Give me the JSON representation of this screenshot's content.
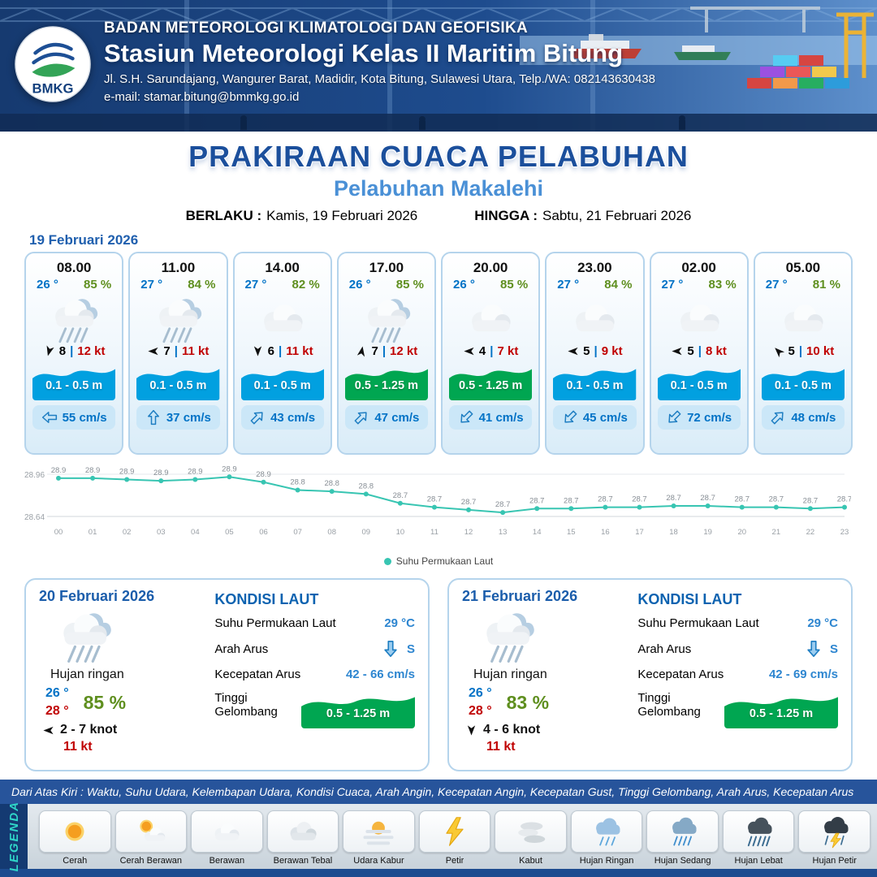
{
  "header": {
    "logo_label": "BMKG",
    "org": "BADAN METEOROLOGI KLIMATOLOGI DAN GEOFISIKA",
    "station": "Stasiun Meteorologi Kelas II Maritim Bitung",
    "address": "Jl. S.H. Sarundajang, Wangurer Barat, Madidir, Kota Bitung, Sulawesi Utara, Telp./WA: 082143630438",
    "email": "e-mail: stamar.bitung@bmmkg.go.id"
  },
  "title": {
    "main": "PRAKIRAAN CUACA PELABUHAN",
    "subtitle": "Pelabuhan Makalehi",
    "berlaku_label": "BERLAKU :",
    "berlaku_value": "Kamis, 19 Februari 2026",
    "hingga_label": "HINGGA :",
    "hingga_value": "Sabtu, 21 Februari 2026"
  },
  "forecast_date": "19 Februari 2026",
  "forecast_cards": [
    {
      "time": "08.00",
      "temp": "26 °",
      "humidity": "85 %",
      "icon": "rain",
      "wind_dir_deg": 105,
      "wind_val": "8",
      "wind_kt": "12 kt",
      "wave": "0.1 - 0.5 m",
      "wave_color": "#01a0e0",
      "current_dir_deg": 180,
      "current": "55 cm/s"
    },
    {
      "time": "11.00",
      "temp": "27 °",
      "humidity": "84 %",
      "icon": "rain",
      "wind_dir_deg": 180,
      "wind_val": "7",
      "wind_kt": "11 kt",
      "wave": "0.1 - 0.5 m",
      "wave_color": "#01a0e0",
      "current_dir_deg": -90,
      "current": "37 cm/s"
    },
    {
      "time": "14.00",
      "temp": "27 °",
      "humidity": "82 %",
      "icon": "cloud",
      "wind_dir_deg": 90,
      "wind_val": "6",
      "wind_kt": "11 kt",
      "wave": "0.1 - 0.5 m",
      "wave_color": "#01a0e0",
      "current_dir_deg": -45,
      "current": "43 cm/s"
    },
    {
      "time": "17.00",
      "temp": "26 °",
      "humidity": "85 %",
      "icon": "rain",
      "wind_dir_deg": -80,
      "wind_val": "7",
      "wind_kt": "12 kt",
      "wave": "0.5 - 1.25 m",
      "wave_color": "#00a651",
      "current_dir_deg": -45,
      "current": "47 cm/s"
    },
    {
      "time": "20.00",
      "temp": "26 °",
      "humidity": "85 %",
      "icon": "cloud",
      "wind_dir_deg": 180,
      "wind_val": "4",
      "wind_kt": "7 kt",
      "wave": "0.5 - 1.25 m",
      "wave_color": "#00a651",
      "current_dir_deg": 135,
      "current": "41 cm/s"
    },
    {
      "time": "23.00",
      "temp": "27 °",
      "humidity": "84 %",
      "icon": "cloud",
      "wind_dir_deg": 180,
      "wind_val": "5",
      "wind_kt": "9 kt",
      "wave": "0.1 - 0.5 m",
      "wave_color": "#01a0e0",
      "current_dir_deg": 135,
      "current": "45 cm/s"
    },
    {
      "time": "02.00",
      "temp": "27 °",
      "humidity": "83 %",
      "icon": "cloud",
      "wind_dir_deg": 180,
      "wind_val": "5",
      "wind_kt": "8 kt",
      "wave": "0.1 - 0.5 m",
      "wave_color": "#01a0e0",
      "current_dir_deg": 135,
      "current": "72 cm/s"
    },
    {
      "time": "05.00",
      "temp": "27 °",
      "humidity": "81 %",
      "icon": "cloud",
      "wind_dir_deg": -135,
      "wind_val": "5",
      "wind_kt": "10 kt",
      "wave": "0.1 - 0.5 m",
      "wave_color": "#01a0e0",
      "current_dir_deg": -45,
      "current": "48 cm/s"
    }
  ],
  "chart_data": {
    "type": "line",
    "series_name": "Suhu Permukaan Laut",
    "x": [
      "00",
      "01",
      "02",
      "03",
      "04",
      "05",
      "06",
      "07",
      "08",
      "09",
      "10",
      "11",
      "12",
      "13",
      "14",
      "15",
      "16",
      "17",
      "18",
      "19",
      "20",
      "21",
      "22",
      "23"
    ],
    "values": [
      28.93,
      28.93,
      28.92,
      28.91,
      28.92,
      28.94,
      28.9,
      28.84,
      28.83,
      28.81,
      28.74,
      28.71,
      28.69,
      28.67,
      28.7,
      28.7,
      28.71,
      28.71,
      28.72,
      28.72,
      28.71,
      28.71,
      28.7,
      28.71
    ],
    "ylim": [
      28.64,
      28.96
    ],
    "yticks": [
      "28.96",
      "28.64"
    ],
    "color": "#38c5b2",
    "grid": "top-bottom-only",
    "legend_position": "bottom-center"
  },
  "daily_cards": [
    {
      "date": "20 Februari 2026",
      "icon": "rain",
      "condition": "Hujan ringan",
      "temp_min": "26 °",
      "temp_max": "28 °",
      "humidity": "85 %",
      "wind_dir_deg": 180,
      "wind_range": "2 - 7 knot",
      "gust": "11 kt",
      "sea": {
        "heading": "KONDISI LAUT",
        "sst_label": "Suhu Permukaan Laut",
        "sst": "29 °C",
        "arah_label": "Arah Arus",
        "arah_dir_deg": 90,
        "arah": "S",
        "kec_label": "Kecepatan Arus",
        "kec": "42 - 66 cm/s",
        "gel_label": "Tinggi Gelombang",
        "gel": "0.5 - 1.25 m",
        "gel_color": "#00a651"
      }
    },
    {
      "date": "21 Februari 2026",
      "icon": "rain",
      "condition": "Hujan ringan",
      "temp_min": "26 °",
      "temp_max": "28 °",
      "humidity": "83 %",
      "wind_dir_deg": 90,
      "wind_range": "4 - 6 knot",
      "gust": "11 kt",
      "sea": {
        "heading": "KONDISI LAUT",
        "sst_label": "Suhu Permukaan Laut",
        "sst": "29 °C",
        "arah_label": "Arah Arus",
        "arah_dir_deg": 90,
        "arah": "S",
        "kec_label": "Kecepatan Arus",
        "kec": "42 - 69 cm/s",
        "gel_label": "Tinggi Gelombang",
        "gel": "0.5 - 1.25 m",
        "gel_color": "#00a651"
      }
    }
  ],
  "footer_note": "Dari Atas Kiri : Waktu, Suhu Udara, Kelembapan Udara, Kondisi Cuaca, Arah Angin, Kecepatan Angin, Kecepatan Gust, Tinggi Gelombang, Arah Arus, Kecepatan Arus",
  "legend": {
    "title": "LEGENDA",
    "items": [
      {
        "label": "Cerah",
        "icon": "sun"
      },
      {
        "label": "Cerah Berawan",
        "icon": "sun-cloud"
      },
      {
        "label": "Berawan",
        "icon": "cloud"
      },
      {
        "label": "Berawan Tebal",
        "icon": "cloud-thick"
      },
      {
        "label": "Udara Kabur",
        "icon": "haze"
      },
      {
        "label": "Petir",
        "icon": "lightning"
      },
      {
        "label": "Kabut",
        "icon": "fog"
      },
      {
        "label": "Hujan Ringan",
        "icon": "rain-light"
      },
      {
        "label": "Hujan Sedang",
        "icon": "rain-mid"
      },
      {
        "label": "Hujan Lebat",
        "icon": "rain-heavy"
      },
      {
        "label": "Hujan Petir",
        "icon": "rain-thunder"
      }
    ]
  }
}
